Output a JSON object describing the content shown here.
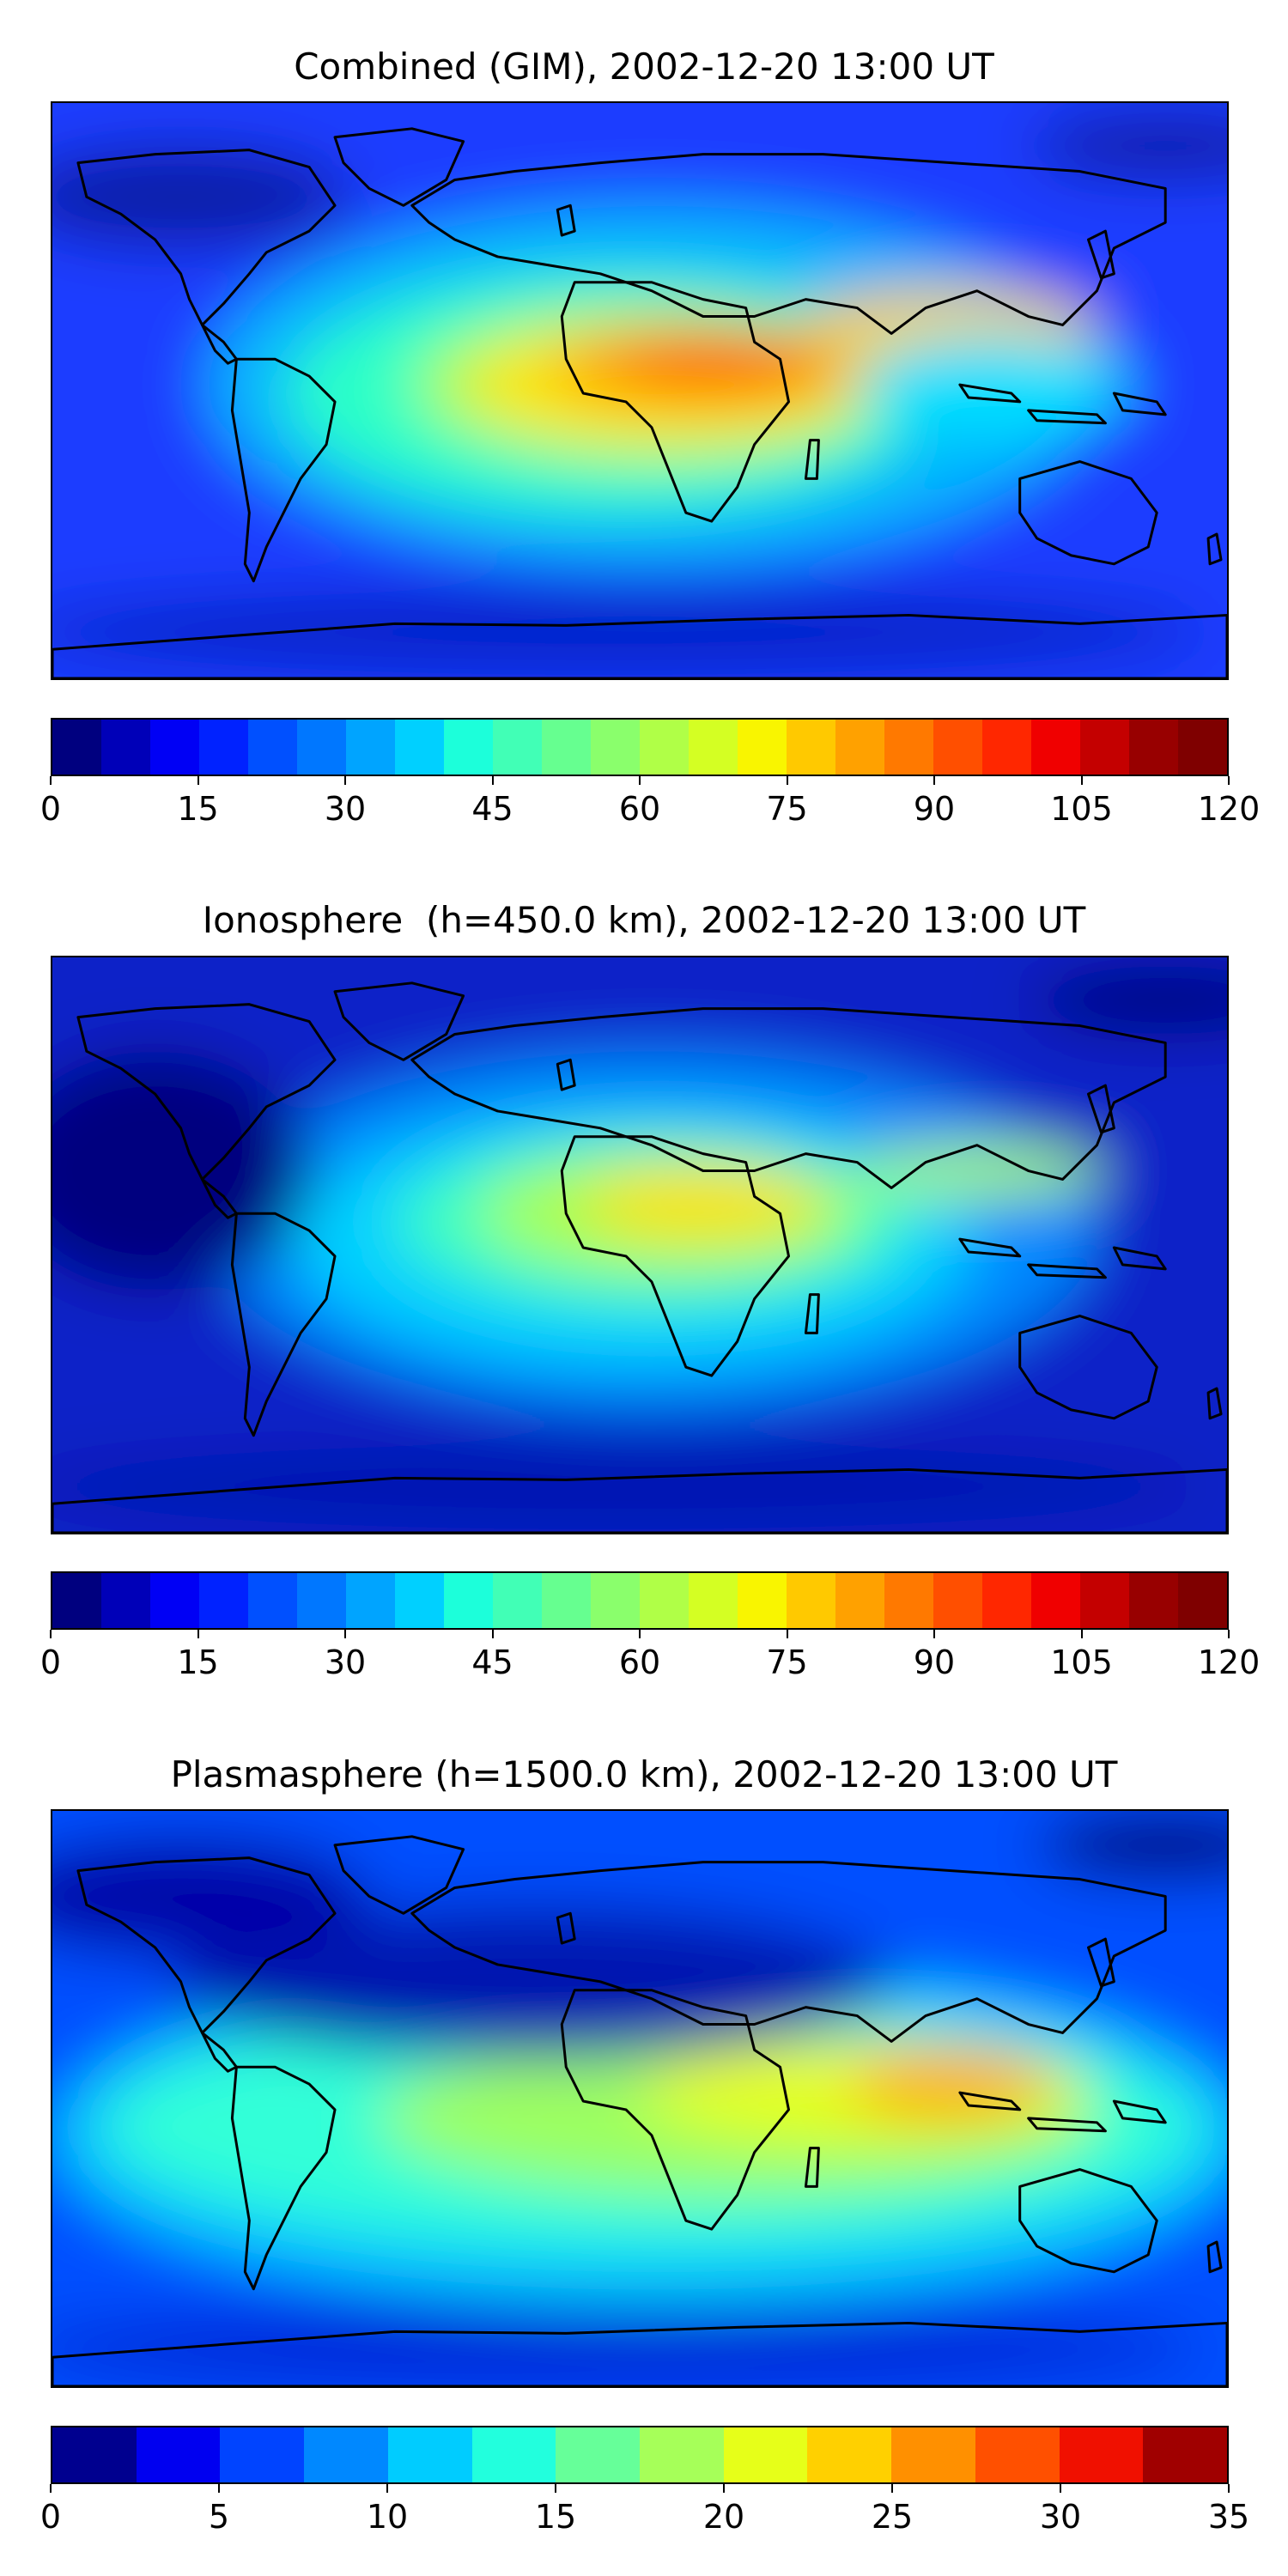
{
  "panels": [
    {
      "title": "Combined (GIM), 2002-12-20 13:00 UT",
      "colorbar": {
        "min": 0,
        "max": 120,
        "levels": 24,
        "ticks": [
          "0",
          "15",
          "30",
          "45",
          "60",
          "75",
          "90",
          "105",
          "120"
        ],
        "colors": [
          "#00007f",
          "#0000b8",
          "#0000f5",
          "#0022ff",
          "#0050ff",
          "#0077ff",
          "#00a4ff",
          "#00d0ff",
          "#1cffda",
          "#41ffb6",
          "#66ff90",
          "#8aff6c",
          "#b0ff47",
          "#d4ff23",
          "#f9f500",
          "#ffc900",
          "#ffa100",
          "#ff7900",
          "#ff4f00",
          "#ff2700",
          "#f00000",
          "#c40000",
          "#980000",
          "#7f0000"
        ]
      }
    },
    {
      "title": "Ionosphere  (h=450.0 km), 2002-12-20 13:00 UT",
      "colorbar": {
        "min": 0,
        "max": 120,
        "levels": 24,
        "ticks": [
          "0",
          "15",
          "30",
          "45",
          "60",
          "75",
          "90",
          "105",
          "120"
        ],
        "colors": [
          "#00007f",
          "#0000b8",
          "#0000f5",
          "#0022ff",
          "#0050ff",
          "#0077ff",
          "#00a4ff",
          "#00d0ff",
          "#1cffda",
          "#41ffb6",
          "#66ff90",
          "#8aff6c",
          "#b0ff47",
          "#d4ff23",
          "#f9f500",
          "#ffc900",
          "#ffa100",
          "#ff7900",
          "#ff4f00",
          "#ff2700",
          "#f00000",
          "#c40000",
          "#980000",
          "#7f0000"
        ]
      }
    },
    {
      "title": "Plasmasphere (h=1500.0 km), 2002-12-20 13:00 UT",
      "colorbar": {
        "min": 0,
        "max": 35,
        "levels": 14,
        "ticks": [
          "0",
          "5",
          "10",
          "15",
          "20",
          "25",
          "30",
          "35"
        ],
        "colors": [
          "#00008f",
          "#0000f0",
          "#0044ff",
          "#0088ff",
          "#00ccff",
          "#22ffdd",
          "#66ff99",
          "#a6ff59",
          "#e6ff19",
          "#ffd000",
          "#ff9000",
          "#ff5000",
          "#f01000",
          "#a00000"
        ]
      }
    }
  ]
}
